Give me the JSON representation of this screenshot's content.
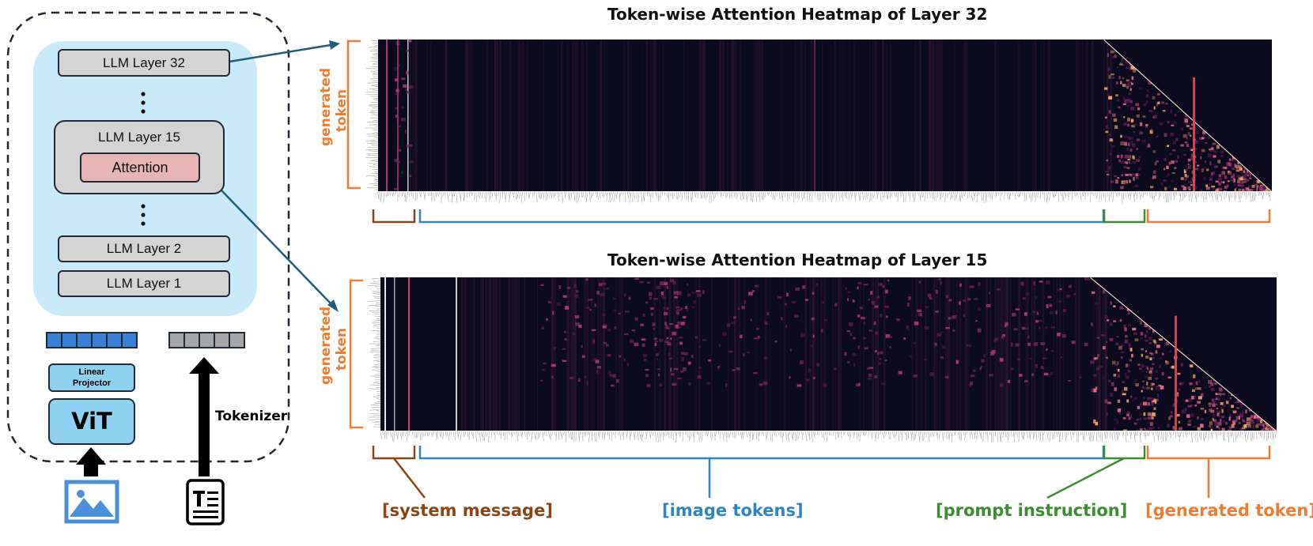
{
  "diagram": {
    "layers": {
      "top": "LLM Layer 32",
      "middle": "LLM Layer 15",
      "attention": "Attention",
      "second": "LLM Layer 2",
      "bottom": "LLM Layer 1"
    },
    "projector": "Linear\nProjector",
    "vit": "ViT",
    "tokenizer": "Tokenizer",
    "icons": {
      "image": "image-icon",
      "text": "text-document-icon"
    }
  },
  "heatmaps": [
    {
      "title": "Token-wise Attention Heatmap of Layer 32",
      "ylabel": "generated\ntoken"
    },
    {
      "title": "Token-wise Attention Heatmap of Layer 15",
      "ylabel": "generated\ntoken"
    }
  ],
  "categories": {
    "system": "[system message]",
    "image": "[image tokens]",
    "prompt": "[prompt instruction]",
    "generated": "[generated token]"
  },
  "colors": {
    "system": "#8b4513",
    "image": "#2e86c1",
    "prompt": "#3c8d2f",
    "generated": "#ed7d31",
    "panel": "#c9ebf9",
    "attention": "#e8b4b4",
    "token_blue": "#3a7fd5",
    "token_gray": "#a6a6a6",
    "heatmap_bg": "#0b0a1f",
    "arrow": "#1f5f7a"
  }
}
